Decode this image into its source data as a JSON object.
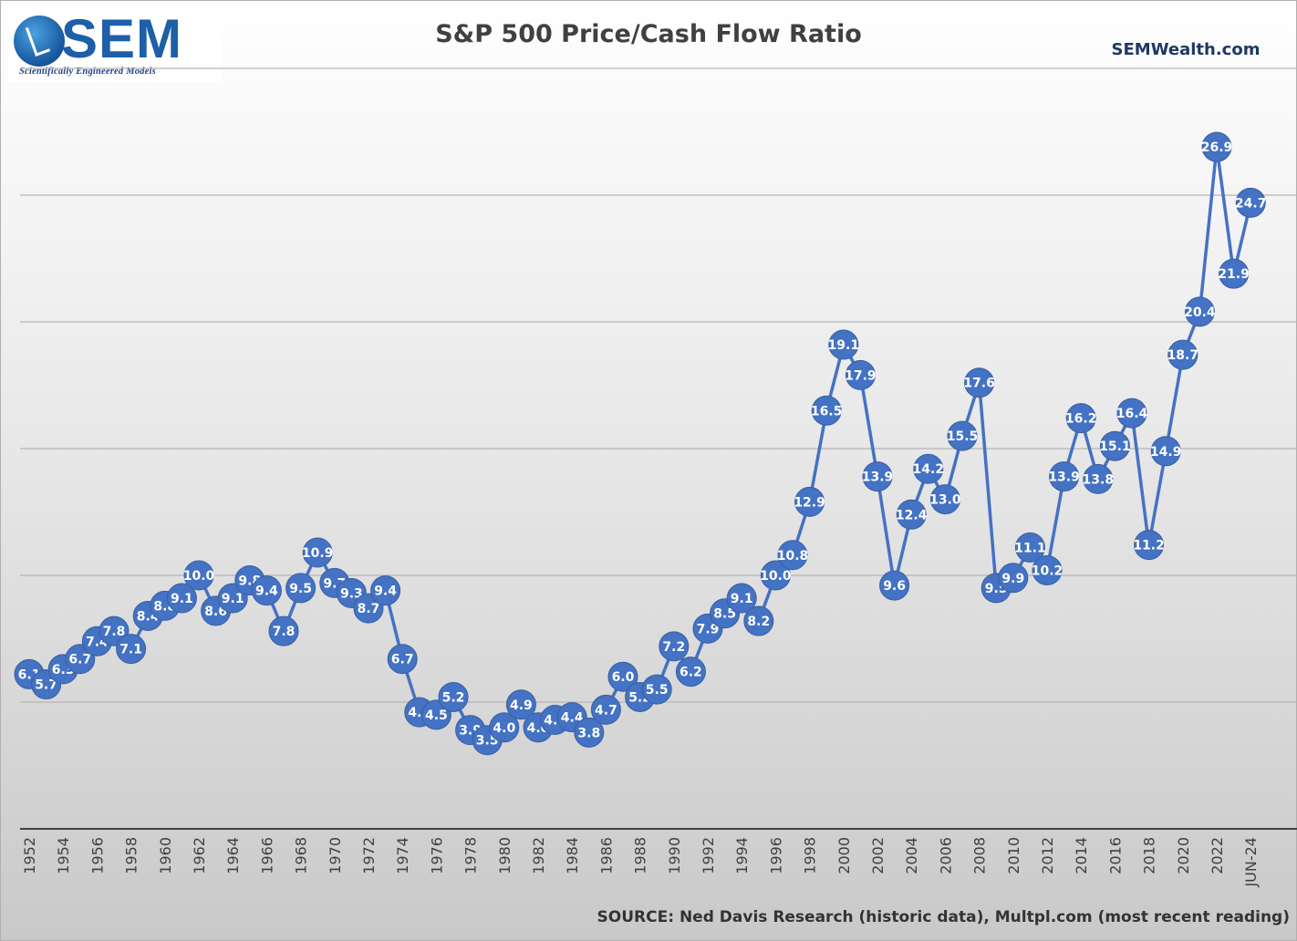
{
  "header": {
    "logo_text": "SEM",
    "logo_tagline": "Scientifically Engineered Models",
    "site": "SEMWealth.com",
    "source": "SOURCE: Ned Davis Research (historic data), Multpl.com (most recent reading)"
  },
  "colors": {
    "series": "#4472c4",
    "grid": "#b4b4b4",
    "axis": "#404040"
  },
  "chart_data": {
    "type": "line",
    "title": "S&P 500 Price/Cash Flow Ratio",
    "xlabel": "",
    "ylabel": "",
    "ylim": [
      0,
      30
    ],
    "grid": true,
    "x_tick_labels": [
      "1952",
      "1954",
      "1956",
      "1958",
      "1960",
      "1962",
      "1964",
      "1966",
      "1968",
      "1970",
      "1972",
      "1974",
      "1976",
      "1978",
      "1980",
      "1982",
      "1984",
      "1986",
      "1988",
      "1990",
      "1992",
      "1994",
      "1996",
      "1998",
      "2000",
      "2002",
      "2004",
      "2006",
      "2008",
      "2010",
      "2012",
      "2014",
      "2016",
      "2018",
      "2020",
      "2022",
      "JUN-24"
    ],
    "categories": [
      "1952",
      "1953",
      "1954",
      "1955",
      "1956",
      "1957",
      "1958",
      "1959",
      "1960",
      "1961",
      "1962",
      "1963",
      "1964",
      "1965",
      "1966",
      "1967",
      "1968",
      "1969",
      "1970",
      "1971",
      "1972",
      "1973",
      "1974",
      "1975",
      "1976",
      "1977",
      "1978",
      "1979",
      "1980",
      "1981",
      "1982",
      "1983",
      "1984",
      "1985",
      "1986",
      "1987",
      "1988",
      "1989",
      "1990",
      "1991",
      "1992",
      "1993",
      "1994",
      "1995",
      "1996",
      "1997",
      "1998",
      "1999",
      "2000",
      "2001",
      "2002",
      "2003",
      "2004",
      "2005",
      "2006",
      "2007",
      "2008",
      "2009",
      "2010",
      "2011",
      "2012",
      "2013",
      "2014",
      "2015",
      "2016",
      "2017",
      "2018",
      "2019",
      "2020",
      "2021",
      "2022",
      "2023",
      "JUN-24"
    ],
    "series": [
      {
        "values": [
          6.1,
          5.7,
          6.3,
          6.7,
          7.4,
          7.8,
          7.1,
          8.4,
          8.8,
          9.1,
          10.0,
          8.6,
          9.1,
          9.8,
          9.4,
          7.8,
          9.5,
          10.9,
          9.7,
          9.3,
          8.7,
          9.4,
          6.7,
          4.6,
          4.5,
          5.2,
          3.9,
          3.5,
          4.0,
          4.9,
          4.0,
          4.3,
          4.4,
          3.8,
          4.7,
          6.0,
          5.2,
          5.5,
          7.2,
          6.2,
          7.9,
          8.5,
          9.1,
          8.2,
          10.0,
          10.8,
          12.9,
          16.5,
          19.1,
          17.9,
          13.9,
          9.6,
          12.4,
          14.2,
          13.0,
          15.5,
          17.6,
          9.5,
          9.9,
          11.1,
          10.2,
          13.9,
          16.2,
          13.8,
          15.1,
          16.4,
          11.2,
          14.9,
          18.7,
          20.4,
          26.9,
          21.9,
          24.7
        ],
        "labels": [
          "6.1",
          "5.7",
          "6.3",
          "6.7",
          "7.4",
          "7.8",
          "7.1",
          "8.4",
          "8.8",
          "9.1",
          "10.0",
          "8.6",
          "9.1",
          "9.8",
          "9.4",
          "7.8",
          "9.5",
          "10.9",
          "9.7",
          "9.3",
          "8.7",
          "9.4",
          "6.7",
          "4.6",
          "4.5",
          "5.2",
          "3.9",
          "3.5",
          "4.0",
          "4.9",
          "4.0",
          "4.3",
          "4.4",
          "3.8",
          "4.7",
          "6.0",
          "5.2",
          "5.5",
          "7.2",
          "6.2",
          "7.9",
          "8.5",
          "9.1",
          "8.2",
          "10.0",
          "10.8",
          "12.9",
          "16.5",
          "19.1",
          "17.9",
          "13.9",
          "9.6",
          "12.4",
          "14.2",
          "13.0",
          "15.5",
          "17.6",
          "9.5",
          "9.9",
          "11.1",
          "10.2",
          "13.9",
          "16.2",
          "13.8",
          "15.1",
          "16.4",
          "11.2",
          "14.9",
          "18.7",
          "20.4",
          "26.9",
          "21.9",
          "24.7"
        ]
      }
    ]
  }
}
